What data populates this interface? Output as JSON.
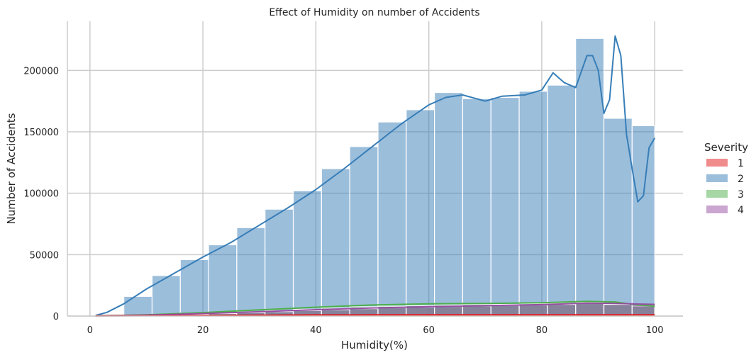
{
  "chart_data": {
    "type": "histogram",
    "title": "Effect of Humidity on number of Accidents",
    "xlabel": "Humidity(%)",
    "ylabel": "Number of Accidents",
    "xlim": [
      -4,
      105
    ],
    "ylim": [
      0,
      240000
    ],
    "xticks": [
      0,
      20,
      40,
      60,
      80,
      100
    ],
    "yticks": [
      0,
      50000,
      100000,
      150000,
      200000
    ],
    "grid": true,
    "legend": {
      "title": "Severity",
      "position": "right",
      "entries": [
        "1",
        "2",
        "3",
        "4"
      ]
    },
    "bins": [
      1,
      6,
      11,
      16,
      21,
      26,
      31,
      36,
      41,
      46,
      51,
      56,
      61,
      66,
      71,
      76,
      81,
      86,
      91,
      96,
      100
    ],
    "colors": {
      "1": "#e41a1c",
      "2": "#377eb8",
      "3": "#4daf4a",
      "4": "#984ea3"
    },
    "series": [
      {
        "name": "2",
        "values": [
          1500,
          16000,
          33000,
          46000,
          58000,
          72000,
          87000,
          102000,
          120000,
          138000,
          158000,
          168000,
          182000,
          177000,
          178000,
          183000,
          188000,
          226000,
          161000,
          155000
        ],
        "kde": [
          [
            1,
            500
          ],
          [
            3,
            3000
          ],
          [
            6,
            10000
          ],
          [
            10,
            22000
          ],
          [
            15,
            35000
          ],
          [
            20,
            48000
          ],
          [
            25,
            60000
          ],
          [
            30,
            74000
          ],
          [
            35,
            88000
          ],
          [
            40,
            103000
          ],
          [
            45,
            120000
          ],
          [
            50,
            138000
          ],
          [
            55,
            156000
          ],
          [
            60,
            172000
          ],
          [
            63,
            178000
          ],
          [
            66,
            180000
          ],
          [
            70,
            175000
          ],
          [
            73,
            179000
          ],
          [
            77,
            180000
          ],
          [
            80,
            184000
          ],
          [
            82,
            198000
          ],
          [
            84,
            190000
          ],
          [
            86,
            186000
          ],
          [
            88,
            212000
          ],
          [
            89,
            212000
          ],
          [
            90,
            200000
          ],
          [
            91,
            165000
          ],
          [
            92,
            176000
          ],
          [
            93,
            228000
          ],
          [
            94,
            212000
          ],
          [
            95,
            148000
          ],
          [
            96,
            120000
          ],
          [
            97,
            93000
          ],
          [
            98,
            98000
          ],
          [
            99,
            137000
          ],
          [
            100,
            145000
          ]
        ]
      },
      {
        "name": "3",
        "values": [
          50,
          400,
          900,
          1500,
          2500,
          3500,
          4500,
          5500,
          6500,
          7500,
          8000,
          8500,
          9000,
          9500,
          9500,
          10000,
          10500,
          11000,
          10000,
          8000
        ],
        "kde": [
          [
            1,
            100
          ],
          [
            10,
            1000
          ],
          [
            20,
            2800
          ],
          [
            30,
            5000
          ],
          [
            40,
            7200
          ],
          [
            50,
            9000
          ],
          [
            60,
            10000
          ],
          [
            70,
            10200
          ],
          [
            80,
            10800
          ],
          [
            88,
            12000
          ],
          [
            93,
            11500
          ],
          [
            97,
            9000
          ],
          [
            100,
            8000
          ]
        ]
      },
      {
        "name": "4",
        "values": [
          50,
          300,
          700,
          1200,
          2000,
          2800,
          3600,
          4500,
          5200,
          6000,
          6800,
          7300,
          7800,
          8200,
          8600,
          9000,
          9500,
          10500,
          9500,
          9500
        ],
        "kde": [
          [
            1,
            100
          ],
          [
            10,
            800
          ],
          [
            20,
            2000
          ],
          [
            30,
            3500
          ],
          [
            40,
            5200
          ],
          [
            50,
            6600
          ],
          [
            60,
            7600
          ],
          [
            70,
            8400
          ],
          [
            80,
            9300
          ],
          [
            88,
            10500
          ],
          [
            93,
            10200
          ],
          [
            97,
            9800
          ],
          [
            100,
            9500
          ]
        ]
      },
      {
        "name": "1",
        "values": [
          20,
          100,
          200,
          300,
          400,
          500,
          600,
          700,
          800,
          900,
          1000,
          1000,
          1000,
          1000,
          1000,
          1000,
          1000,
          1000,
          1000,
          1000
        ],
        "kde": [
          [
            1,
            100
          ],
          [
            10,
            300
          ],
          [
            20,
            500
          ],
          [
            30,
            700
          ],
          [
            40,
            900
          ],
          [
            50,
            1000
          ],
          [
            60,
            1000
          ],
          [
            70,
            1000
          ],
          [
            80,
            1000
          ],
          [
            90,
            1000
          ],
          [
            100,
            1000
          ]
        ]
      }
    ]
  }
}
